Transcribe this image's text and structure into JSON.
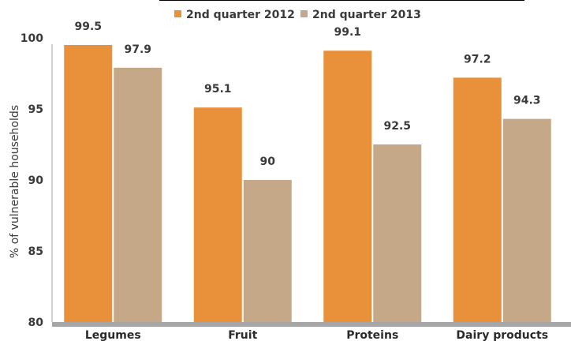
{
  "chart_data": {
    "type": "bar",
    "categories": [
      "Legumes",
      "Fruit",
      "Proteins",
      "Dairy products"
    ],
    "series": [
      {
        "name": "2nd quarter 2012",
        "values": [
          99.5,
          95.1,
          99.1,
          97.2
        ],
        "value_labels": [
          "99.5",
          "95.1",
          "99.1",
          "97.2"
        ],
        "color": "#e8903a"
      },
      {
        "name": "2nd quarter 2013",
        "values": [
          97.9,
          90,
          92.5,
          94.3
        ],
        "value_labels": [
          "97.9",
          "90",
          "92.5",
          "94.3"
        ],
        "color": "#c4a887"
      }
    ],
    "title": "",
    "xlabel": "",
    "ylabel": "% of vulnerable households",
    "ylim": [
      80,
      100
    ],
    "yticks": [
      80,
      85,
      90,
      95,
      100
    ],
    "grid": false,
    "legend_position": "top",
    "axis_color": "#a6a6a6"
  }
}
